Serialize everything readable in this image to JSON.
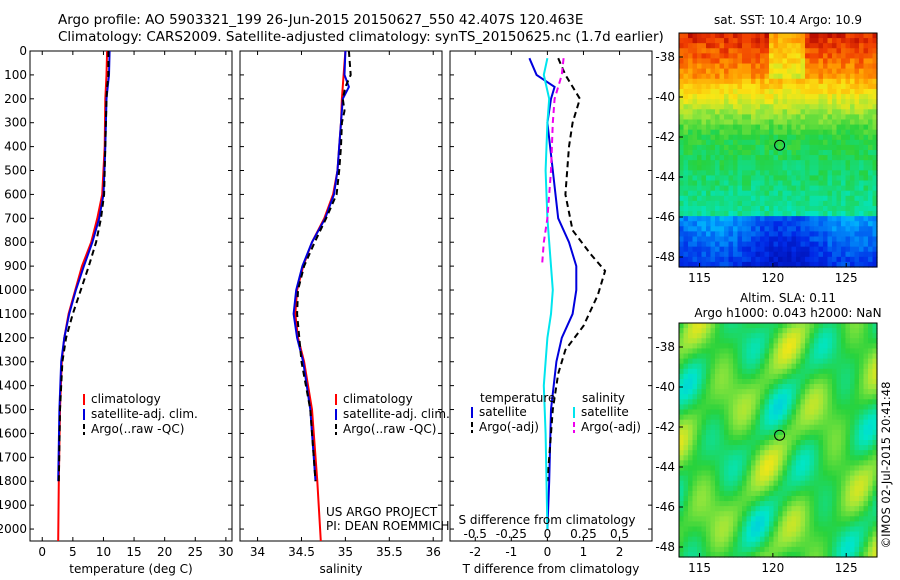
{
  "header": {
    "line1": "Argo profile: AO 5903321_199 26-Jun-2015 20150627_550 42.407S 120.463E",
    "line2": "Climatology: CARS2009. Satellite-adjusted climatology: synTS_20150625.nc (1.7d earlier)"
  },
  "colors": {
    "climatology": "#ff0000",
    "satellite": "#0000dd",
    "argo": "#000000",
    "salinity_satellite": "#00e5ee",
    "salinity_argo": "#ee00ee"
  },
  "chart_data": [
    {
      "type": "line",
      "xlabel": "temperature (deg C)",
      "ylabel": "",
      "xlim": [
        -2,
        31
      ],
      "ylim": [
        2050,
        0
      ],
      "xticks": [
        0,
        5,
        10,
        15,
        20,
        25,
        30
      ],
      "yticks": [
        0,
        100,
        200,
        300,
        400,
        500,
        600,
        700,
        800,
        900,
        1000,
        1100,
        1200,
        1300,
        1400,
        1500,
        1600,
        1700,
        1800,
        1900,
        2000
      ],
      "legend": {
        "position": "lower-middle",
        "entries": [
          "climatology",
          "satellite-adj. clim.",
          "Argo(..raw -QC)"
        ]
      },
      "series": [
        {
          "name": "climatology",
          "style": "solid",
          "color": "#ff0000",
          "x": [
            10.6,
            10.5,
            10.4,
            10.3,
            10.2,
            9.8,
            9.0,
            8.0,
            6.5,
            5.4,
            4.3,
            3.6,
            3.2,
            2.9,
            2.7,
            2.6
          ],
          "y": [
            0,
            100,
            150,
            200,
            400,
            600,
            700,
            800,
            900,
            1000,
            1100,
            1200,
            1300,
            1500,
            1800,
            2050
          ]
        },
        {
          "name": "satellite-adj. clim.",
          "style": "solid",
          "color": "#0000dd",
          "x": [
            11.0,
            10.9,
            10.7,
            10.5,
            10.3,
            10.0,
            9.3,
            8.2,
            6.8,
            5.5,
            4.4,
            3.6,
            3.1,
            2.8,
            2.6
          ],
          "y": [
            0,
            100,
            150,
            200,
            400,
            600,
            700,
            800,
            900,
            1000,
            1100,
            1200,
            1300,
            1500,
            1800
          ]
        },
        {
          "name": "Argo(..raw -QC)",
          "style": "dashed",
          "color": "#000000",
          "x": [
            10.8,
            10.8,
            10.6,
            10.5,
            10.3,
            10.1,
            9.6,
            8.8,
            7.6,
            6.3,
            5.0,
            3.9,
            3.3,
            2.9,
            2.7
          ],
          "y": [
            0,
            100,
            150,
            200,
            400,
            600,
            700,
            800,
            900,
            1000,
            1100,
            1200,
            1300,
            1500,
            1800
          ]
        }
      ]
    },
    {
      "type": "line",
      "xlabel": "salinity",
      "ylabel": "",
      "xlim": [
        33.8,
        36.1
      ],
      "ylim": [
        2050,
        0
      ],
      "xticks": [
        34,
        34.5,
        35,
        35.5,
        36
      ],
      "legend": {
        "position": "lower-middle",
        "entries": [
          "climatology",
          "satellite-adj. clim.",
          "Argo(..raw -QC)"
        ]
      },
      "annotation": [
        "US ARGO PROJECT",
        "PI: DEAN ROEMMICH"
      ],
      "series": [
        {
          "name": "climatology",
          "style": "solid",
          "color": "#ff0000",
          "x": [
            35.0,
            34.98,
            34.96,
            34.95,
            34.93,
            34.91,
            34.86,
            34.76,
            34.62,
            34.52,
            34.45,
            34.43,
            34.46,
            34.53,
            34.62,
            34.68,
            34.72
          ],
          "y": [
            0,
            100,
            200,
            300,
            400,
            500,
            600,
            700,
            800,
            900,
            1000,
            1100,
            1200,
            1300,
            1500,
            1800,
            2050
          ]
        },
        {
          "name": "satellite-adj. clim.",
          "style": "solid",
          "color": "#0000dd",
          "x": [
            35.0,
            34.99,
            35.04,
            34.97,
            34.95,
            34.93,
            34.91,
            34.87,
            34.77,
            34.62,
            34.51,
            34.44,
            34.41,
            34.45,
            34.52,
            34.6,
            34.66
          ],
          "y": [
            0,
            100,
            150,
            200,
            300,
            400,
            500,
            600,
            700,
            800,
            900,
            1000,
            1100,
            1200,
            1300,
            1500,
            1800
          ]
        },
        {
          "name": "Argo(..raw -QC)",
          "style": "dashed",
          "color": "#000000",
          "x": [
            35.04,
            35.06,
            35.0,
            34.97,
            34.99,
            34.96,
            34.95,
            34.93,
            34.9,
            34.78,
            34.65,
            34.53,
            34.46,
            34.45,
            34.5,
            34.6,
            34.66
          ],
          "y": [
            0,
            100,
            150,
            200,
            250,
            300,
            400,
            500,
            600,
            700,
            800,
            900,
            1000,
            1100,
            1300,
            1500,
            1800
          ]
        }
      ]
    },
    {
      "type": "line",
      "xlabel": "T difference from climatology",
      "x2label": "S difference from climatology",
      "xlim": [
        -2.7,
        2.9
      ],
      "ylim": [
        2050,
        0
      ],
      "xticks": [
        -2,
        -1,
        0,
        1,
        2
      ],
      "x2ticks": [
        -0.5,
        -0.25,
        0,
        0.25,
        0.5
      ],
      "legend": {
        "position": "lower",
        "temperature_title": "temperature",
        "salinity_title": "salinity",
        "entries": [
          "satellite",
          "Argo(-adj)",
          "satellite",
          "Argo(-adj)"
        ]
      },
      "series": [
        {
          "name": "satellite",
          "group": "temperature",
          "style": "solid",
          "color": "#0000dd",
          "x": [
            -0.5,
            -0.3,
            0.2,
            0.1,
            0.0,
            0.15,
            0.3,
            0.6,
            0.8,
            0.8,
            0.7,
            0.4,
            0.25,
            0.1,
            0.05,
            0.0
          ],
          "y": [
            30,
            100,
            150,
            200,
            300,
            500,
            700,
            800,
            900,
            1000,
            1100,
            1200,
            1300,
            1500,
            1800,
            2000
          ]
        },
        {
          "name": "Argo(-adj)",
          "group": "temperature",
          "style": "dashed",
          "color": "#000000",
          "x": [
            0.3,
            0.5,
            0.9,
            0.7,
            0.6,
            0.5,
            0.7,
            1.2,
            1.6,
            1.4,
            1.0,
            0.5,
            0.3,
            0.15,
            0.0
          ],
          "y": [
            30,
            100,
            200,
            300,
            400,
            600,
            750,
            850,
            920,
            1020,
            1150,
            1250,
            1350,
            1500,
            1800
          ]
        },
        {
          "name": "satellite",
          "group": "salinity",
          "style": "solid",
          "color": "#00e5ee",
          "x": [
            0.0,
            -0.1,
            0.05,
            0.0,
            -0.05,
            0.0,
            0.05,
            0.1,
            0.15,
            0.1,
            0.0,
            -0.05,
            -0.1,
            -0.05,
            0.0
          ],
          "y": [
            30,
            100,
            200,
            300,
            500,
            700,
            800,
            900,
            1000,
            1100,
            1200,
            1300,
            1400,
            1600,
            2000
          ]
        },
        {
          "name": "Argo(-adj)",
          "group": "salinity",
          "style": "dashed",
          "color": "#ee00ee",
          "x": [
            0.45,
            0.4,
            0.2,
            0.15,
            0.1,
            0.0,
            -0.1,
            -0.15
          ],
          "y": [
            30,
            100,
            200,
            300,
            500,
            700,
            800,
            900
          ]
        }
      ]
    }
  ],
  "maps": [
    {
      "title": "sat. SST: 10.4  Argo: 10.9",
      "xticks": [
        "115",
        "120",
        "125"
      ],
      "yticks": [
        "-38",
        "-40",
        "-42",
        "-44",
        "-46",
        "-48"
      ],
      "marker": {
        "lon": 120.46,
        "lat": -42.41
      }
    },
    {
      "title_line1": "Altim. SLA: 0.11",
      "title_line2": "Argo h1000: 0.043 h2000: NaN",
      "xticks": [
        "115",
        "120",
        "125"
      ],
      "yticks": [
        "-38",
        "-40",
        "-42",
        "-44",
        "-46",
        "-48"
      ],
      "marker": {
        "lon": 120.46,
        "lat": -42.41
      }
    }
  ],
  "footer_vertical": "©IMOS 02-Jul-2015 20:41:48"
}
